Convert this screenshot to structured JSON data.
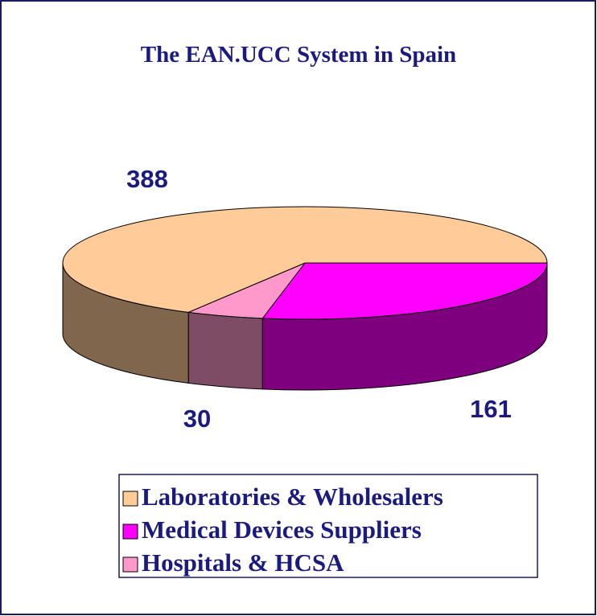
{
  "chart_data": {
    "type": "pie3d",
    "title": "The EAN.UCC System in Spain",
    "categories": [
      "Medical Devices Suppliers",
      "Hospitals & HCSA",
      "Laboratories & Wholesalers"
    ],
    "values": [
      161,
      30,
      388
    ],
    "colors": [
      "#FF00FF",
      "#FF99CC",
      "#FFCC99"
    ],
    "legend_order": [
      2,
      0,
      1
    ]
  }
}
